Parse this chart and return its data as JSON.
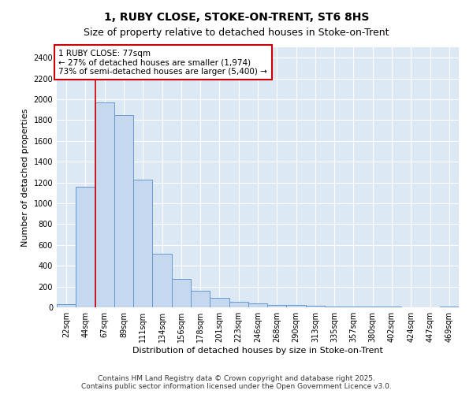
{
  "title": "1, RUBY CLOSE, STOKE-ON-TRENT, ST6 8HS",
  "subtitle": "Size of property relative to detached houses in Stoke-on-Trent",
  "xlabel": "Distribution of detached houses by size in Stoke-on-Trent",
  "ylabel": "Number of detached properties",
  "bar_color": "#c5d8f0",
  "bar_edge_color": "#6699cc",
  "categories": [
    "22sqm",
    "44sqm",
    "67sqm",
    "89sqm",
    "111sqm",
    "134sqm",
    "156sqm",
    "178sqm",
    "201sqm",
    "223sqm",
    "246sqm",
    "268sqm",
    "290sqm",
    "313sqm",
    "335sqm",
    "357sqm",
    "380sqm",
    "402sqm",
    "424sqm",
    "447sqm",
    "469sqm"
  ],
  "values": [
    30,
    1160,
    1970,
    1850,
    1230,
    515,
    275,
    160,
    90,
    50,
    40,
    25,
    20,
    15,
    10,
    5,
    5,
    5,
    3,
    2,
    5
  ],
  "ylim": [
    0,
    2500
  ],
  "yticks": [
    0,
    200,
    400,
    600,
    800,
    1000,
    1200,
    1400,
    1600,
    1800,
    2000,
    2200,
    2400
  ],
  "vline_color": "#cc0000",
  "vline_x_index": 2,
  "annotation_text": "1 RUBY CLOSE: 77sqm\n← 27% of detached houses are smaller (1,974)\n73% of semi-detached houses are larger (5,400) →",
  "annotation_box_facecolor": "#ffffff",
  "annotation_box_edgecolor": "#cc0000",
  "fig_facecolor": "#ffffff",
  "ax_facecolor": "#dde8f5",
  "grid_color": "#ffffff",
  "footer_line1": "Contains HM Land Registry data © Crown copyright and database right 2025.",
  "footer_line2": "Contains public sector information licensed under the Open Government Licence v3.0.",
  "title_fontsize": 10,
  "subtitle_fontsize": 9,
  "axis_label_fontsize": 8,
  "tick_fontsize": 7,
  "annotation_fontsize": 7.5,
  "footer_fontsize": 6.5
}
